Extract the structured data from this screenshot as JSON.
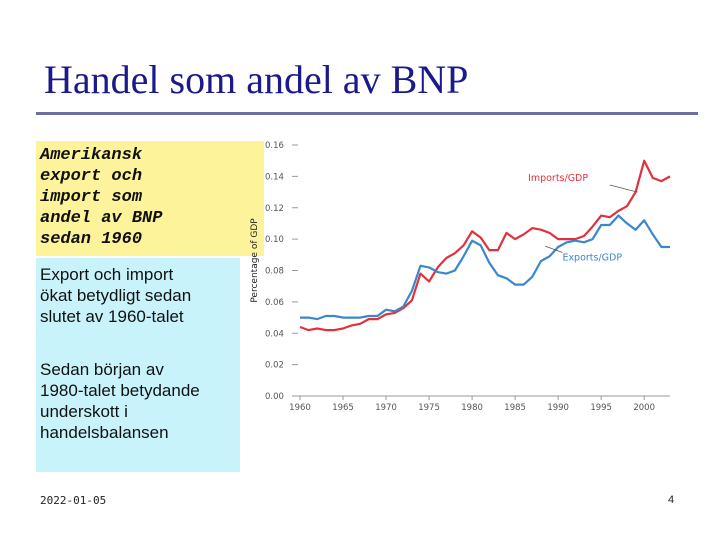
{
  "slide": {
    "title": "Handel som andel av BNP",
    "highlight_text": "Amerikansk\nexport och\nimport som\nandel av BNP\nsedan 1960",
    "bullets": [
      "Export och import\nökat betydligt sedan\nslutet av 1960-talet",
      "Sedan början av\n1980-talet betydande\nunderskott i\nhandelsbalansen"
    ],
    "footer_date": "2022-01-05",
    "page_number": "4"
  },
  "colors": {
    "title": "#1a1a8c",
    "imports_line": "#e0323c",
    "exports_line": "#3a86d0",
    "highlight_bg": "#fdf39a",
    "bullets_bg": "#c8f3fb"
  },
  "chart_data": {
    "type": "line",
    "title": "",
    "xlabel": "",
    "ylabel": "Percentage of GDP",
    "xlim": [
      1960,
      2003
    ],
    "ylim": [
      0,
      0.16
    ],
    "yticks": [
      "0.00",
      "0.02",
      "0.04",
      "0.06",
      "0.08",
      "0.10",
      "0.12",
      "0.14",
      "0.16"
    ],
    "xticks": [
      "1960",
      "1965",
      "1970",
      "1975",
      "1980",
      "1985",
      "1990",
      "1995",
      "2000"
    ],
    "grid": false,
    "x": [
      1960,
      1961,
      1962,
      1963,
      1964,
      1965,
      1966,
      1967,
      1968,
      1969,
      1970,
      1971,
      1972,
      1973,
      1974,
      1975,
      1976,
      1977,
      1978,
      1979,
      1980,
      1981,
      1982,
      1983,
      1984,
      1985,
      1986,
      1987,
      1988,
      1989,
      1990,
      1991,
      1992,
      1993,
      1994,
      1995,
      1996,
      1997,
      1998,
      1999,
      2000,
      2001,
      2002,
      2003
    ],
    "series": [
      {
        "name": "Imports/GDP",
        "values": [
          0.044,
          0.042,
          0.043,
          0.042,
          0.042,
          0.043,
          0.045,
          0.046,
          0.049,
          0.049,
          0.052,
          0.053,
          0.056,
          0.061,
          0.078,
          0.073,
          0.082,
          0.088,
          0.091,
          0.096,
          0.105,
          0.101,
          0.093,
          0.093,
          0.104,
          0.1,
          0.103,
          0.107,
          0.106,
          0.104,
          0.1,
          0.1,
          0.1,
          0.102,
          0.108,
          0.115,
          0.114,
          0.118,
          0.121,
          0.13,
          0.15,
          0.139,
          0.137,
          0.14
        ]
      },
      {
        "name": "Exports/GDP",
        "values": [
          0.05,
          0.05,
          0.049,
          0.051,
          0.051,
          0.05,
          0.05,
          0.05,
          0.051,
          0.051,
          0.055,
          0.054,
          0.057,
          0.067,
          0.083,
          0.082,
          0.079,
          0.078,
          0.08,
          0.089,
          0.099,
          0.096,
          0.085,
          0.077,
          0.075,
          0.071,
          0.071,
          0.076,
          0.086,
          0.089,
          0.095,
          0.098,
          0.099,
          0.098,
          0.1,
          0.109,
          0.109,
          0.115,
          0.11,
          0.106,
          0.112,
          0.103,
          0.095,
          0.095
        ]
      }
    ]
  }
}
